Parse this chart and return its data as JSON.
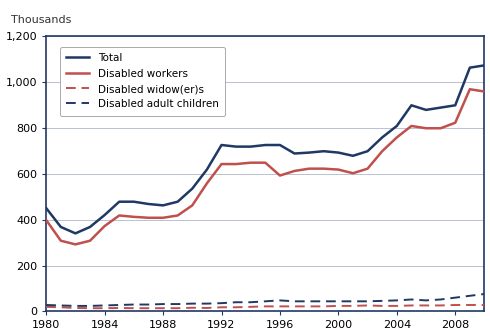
{
  "years": [
    1980,
    1981,
    1982,
    1983,
    1984,
    1985,
    1986,
    1987,
    1988,
    1989,
    1990,
    1991,
    1992,
    1993,
    1994,
    1995,
    1996,
    1997,
    1998,
    1999,
    2000,
    2001,
    2002,
    2003,
    2004,
    2005,
    2006,
    2007,
    2008,
    2009,
    2010
  ],
  "total": [
    450,
    368,
    340,
    368,
    420,
    478,
    478,
    468,
    462,
    478,
    535,
    618,
    725,
    718,
    718,
    725,
    725,
    688,
    692,
    698,
    692,
    678,
    698,
    758,
    808,
    898,
    878,
    888,
    898,
    1062,
    1072
  ],
  "disabled_workers": [
    398,
    308,
    292,
    308,
    372,
    418,
    412,
    408,
    408,
    418,
    462,
    558,
    642,
    642,
    648,
    648,
    592,
    612,
    622,
    622,
    618,
    602,
    622,
    698,
    758,
    808,
    798,
    798,
    822,
    968,
    958
  ],
  "disabled_widowers": [
    20,
    18,
    15,
    14,
    14,
    15,
    14,
    14,
    14,
    14,
    16,
    15,
    18,
    18,
    20,
    22,
    22,
    22,
    22,
    22,
    24,
    24,
    26,
    24,
    24,
    26,
    26,
    26,
    28,
    28,
    28
  ],
  "disabled_adult_children": [
    28,
    26,
    24,
    24,
    26,
    28,
    30,
    30,
    32,
    32,
    34,
    34,
    36,
    40,
    40,
    44,
    48,
    44,
    44,
    44,
    44,
    44,
    44,
    46,
    48,
    52,
    48,
    52,
    60,
    68,
    76
  ],
  "total_color": "#1f3864",
  "disabled_workers_color": "#c0504d",
  "disabled_widowers_color": "#c0504d",
  "disabled_adult_children_color": "#1f3864",
  "border_color": "#1f3864",
  "ylim": [
    0,
    1200
  ],
  "yticks": [
    0,
    200,
    400,
    600,
    800,
    1000,
    1200
  ],
  "xticks": [
    1980,
    1984,
    1988,
    1992,
    1996,
    2000,
    2004,
    2008
  ],
  "ylabel": "Thousands",
  "legend_labels": [
    "Total",
    "Disabled workers",
    "Disabled widow(er)s",
    "Disabled adult children"
  ],
  "bg_color": "#ffffff",
  "grid_color": "#b0b8c8"
}
